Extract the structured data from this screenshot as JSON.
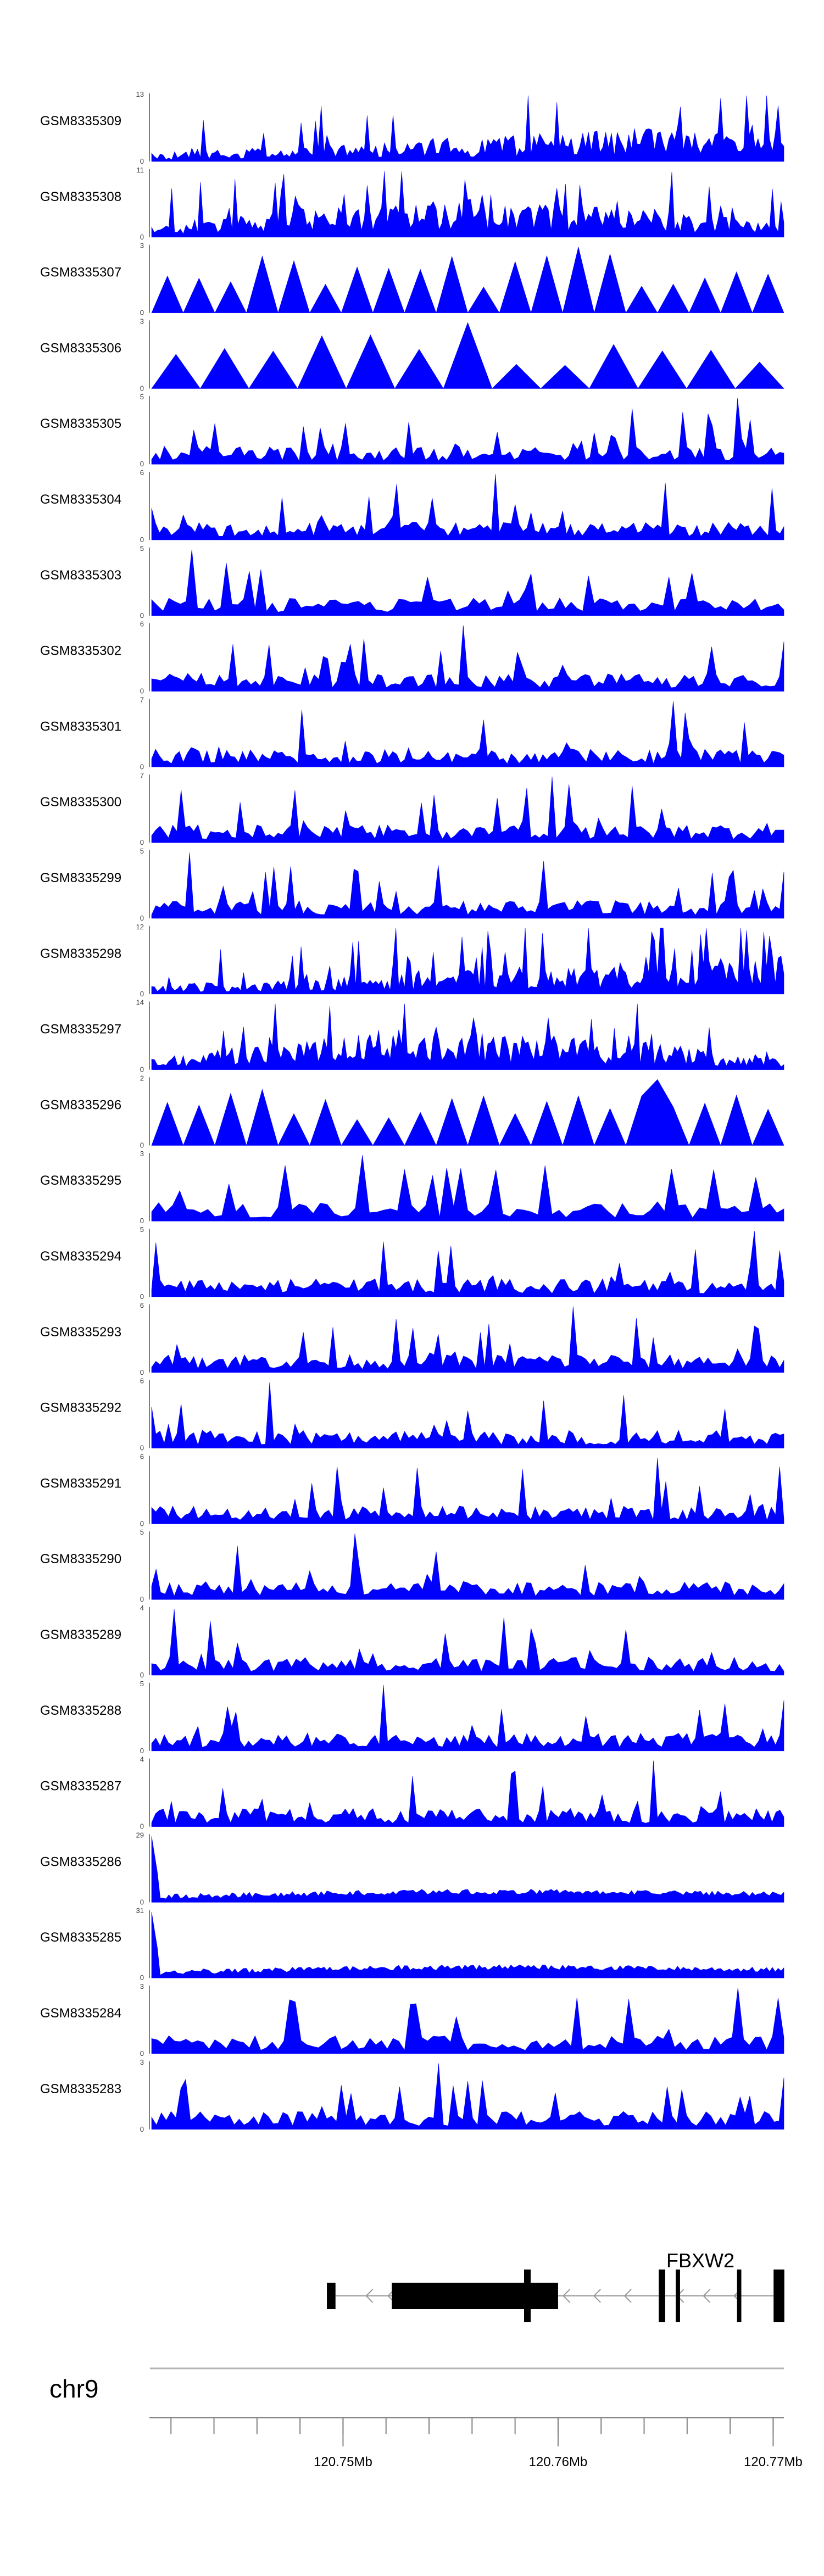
{
  "chart_data": {
    "type": "area",
    "title": "",
    "fill_color": "#0000ff",
    "axis_color": "#555555",
    "genomic_range_mb": [
      120.7411,
      120.7705
    ],
    "tracks": [
      {
        "name": "GSM8335309",
        "ymax": "13",
        "ymin": "0",
        "max_value": 13,
        "seed": 11,
        "profile": "rising",
        "density": 220
      },
      {
        "name": "GSM8335308",
        "ymax": "11",
        "ymin": "0",
        "max_value": 11,
        "seed": 23,
        "profile": "middle",
        "density": 220
      },
      {
        "name": "GSM8335307",
        "ymax": "3",
        "ymin": "0",
        "max_value": 3,
        "seed": 37,
        "profile": "sparse",
        "density": 40
      },
      {
        "name": "GSM8335306",
        "ymax": "3",
        "ymin": "0",
        "max_value": 3,
        "seed": 41,
        "profile": "sparse",
        "density": 26
      },
      {
        "name": "GSM8335305",
        "ymax": "5",
        "ymin": "0",
        "max_value": 5,
        "seed": 53,
        "profile": "flat",
        "density": 150
      },
      {
        "name": "GSM8335304",
        "ymax": "6",
        "ymin": "0",
        "max_value": 6,
        "seed": 61,
        "profile": "flat",
        "density": 160
      },
      {
        "name": "GSM8335303",
        "ymax": "5",
        "ymin": "0",
        "max_value": 5,
        "seed": 71,
        "profile": "flat",
        "density": 110
      },
      {
        "name": "GSM8335302",
        "ymax": "6",
        "ymin": "0",
        "max_value": 6,
        "seed": 83,
        "profile": "flat",
        "density": 140
      },
      {
        "name": "GSM8335301",
        "ymax": "7",
        "ymin": "0",
        "max_value": 7,
        "seed": 97,
        "profile": "flat",
        "density": 160
      },
      {
        "name": "GSM8335300",
        "ymax": "7",
        "ymin": "0",
        "max_value": 7,
        "seed": 101,
        "profile": "flat",
        "density": 150
      },
      {
        "name": "GSM8335299",
        "ymax": "5",
        "ymin": "0",
        "max_value": 5,
        "seed": 113,
        "profile": "flat",
        "density": 150
      },
      {
        "name": "GSM8335298",
        "ymax": "12",
        "ymin": "0",
        "max_value": 12,
        "seed": 127,
        "profile": "rising",
        "density": 220
      },
      {
        "name": "GSM8335297",
        "ymax": "14",
        "ymin": "0",
        "max_value": 14,
        "seed": 131,
        "profile": "middle",
        "density": 220
      },
      {
        "name": "GSM8335296",
        "ymax": "2",
        "ymin": "0",
        "max_value": 2,
        "seed": 139,
        "profile": "sparse",
        "density": 40
      },
      {
        "name": "GSM8335295",
        "ymax": "3",
        "ymin": "0",
        "max_value": 3,
        "seed": 149,
        "profile": "flat",
        "density": 90
      },
      {
        "name": "GSM8335294",
        "ymax": "5",
        "ymin": "0",
        "max_value": 5,
        "seed": 157,
        "profile": "flat",
        "density": 150
      },
      {
        "name": "GSM8335293",
        "ymax": "6",
        "ymin": "0",
        "max_value": 6,
        "seed": 163,
        "profile": "flat",
        "density": 150
      },
      {
        "name": "GSM8335292",
        "ymax": "6",
        "ymin": "0",
        "max_value": 6,
        "seed": 173,
        "profile": "flat",
        "density": 150
      },
      {
        "name": "GSM8335291",
        "ymax": "6",
        "ymin": "0",
        "max_value": 6,
        "seed": 181,
        "profile": "flat",
        "density": 150
      },
      {
        "name": "GSM8335290",
        "ymax": "5",
        "ymin": "0",
        "max_value": 5,
        "seed": 191,
        "profile": "flat",
        "density": 140
      },
      {
        "name": "GSM8335289",
        "ymax": "4",
        "ymin": "0",
        "max_value": 4,
        "seed": 197,
        "profile": "flat",
        "density": 140
      },
      {
        "name": "GSM8335288",
        "ymax": "5",
        "ymin": "0",
        "max_value": 5,
        "seed": 211,
        "profile": "flat",
        "density": 150
      },
      {
        "name": "GSM8335287",
        "ymax": "4",
        "ymin": "0",
        "max_value": 4,
        "seed": 223,
        "profile": "flat",
        "density": 160
      },
      {
        "name": "GSM8335286",
        "ymax": "29",
        "ymin": "0",
        "max_value": 29,
        "seed": 227,
        "profile": "spike",
        "density": 220
      },
      {
        "name": "GSM8335285",
        "ymax": "31",
        "ymin": "0",
        "max_value": 31,
        "seed": 239,
        "profile": "spike",
        "density": 220
      },
      {
        "name": "GSM8335284",
        "ymax": "3",
        "ymin": "0",
        "max_value": 3,
        "seed": 241,
        "profile": "flat",
        "density": 110
      },
      {
        "name": "GSM8335283",
        "ymax": "3",
        "ymin": "0",
        "max_value": 3,
        "seed": 251,
        "profile": "flat",
        "density": 130
      }
    ],
    "gene": {
      "name": "FBXW2",
      "strand": "-",
      "exons_mb": [
        [
          120.74925,
          120.74965
        ],
        [
          120.75227,
          120.76
        ],
        [
          120.76468,
          120.76498
        ],
        [
          120.76547,
          120.76567
        ],
        [
          120.76832,
          120.76852
        ],
        [
          120.77002,
          120.77052
        ]
      ],
      "intron_mb": [
        120.74965,
        120.77002
      ]
    },
    "ideogram": {
      "chromosome": "chr9"
    },
    "xaxis": {
      "tick_labels": [
        {
          "label": "120.75Mb",
          "mb": 120.75
        },
        {
          "label": "120.76Mb",
          "mb": 120.76
        },
        {
          "label": "120.77Mb",
          "mb": 120.77
        }
      ],
      "minor_ticks_mb": [
        120.742,
        120.744,
        120.746,
        120.748,
        120.75,
        120.752,
        120.754,
        120.756,
        120.758,
        120.76,
        120.762,
        120.764,
        120.766,
        120.768,
        120.77
      ],
      "major_ticks_mb": [
        120.75,
        120.76,
        120.77
      ]
    }
  }
}
